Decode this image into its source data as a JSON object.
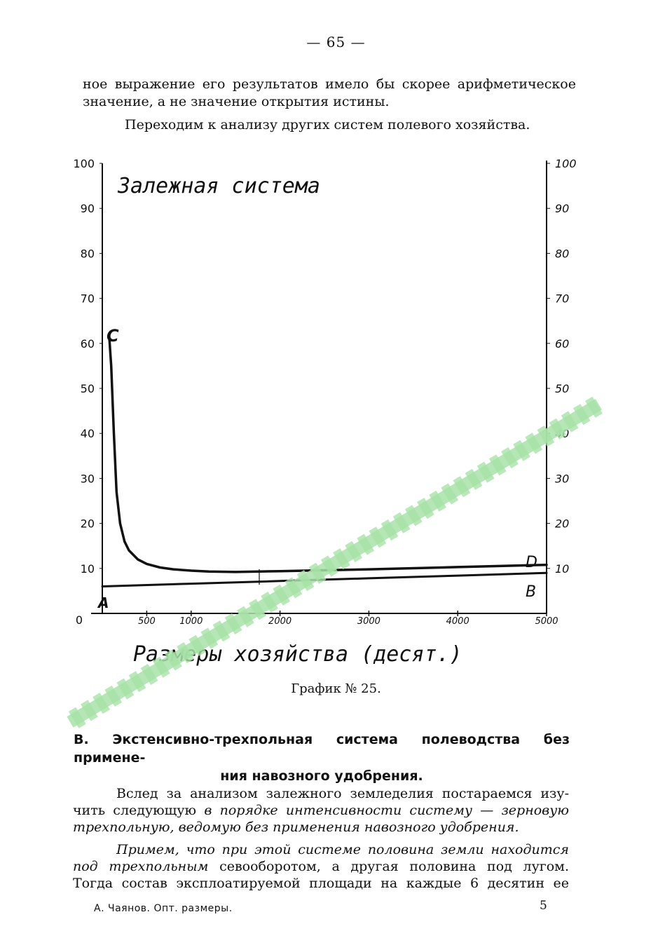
{
  "page_number": "— 65 —",
  "intro": {
    "line1": "ное выражение его результатов имело бы скорее арифметическое",
    "line2": "значение, а не значение открытия истины.",
    "line3": "Переходим к анализу других систем полевого хозяйства."
  },
  "chart_data": {
    "type": "line",
    "title": "Залежная система",
    "xlabel": "Размеры хозяйства (десят.)",
    "ylabel": "",
    "xlim": [
      0,
      5000
    ],
    "ylim": [
      0,
      100
    ],
    "x_ticks": [
      "500",
      "1000",
      "2000",
      "3000",
      "4000",
      "5000"
    ],
    "x_tick_values": [
      500,
      1000,
      2000,
      3000,
      4000,
      5000
    ],
    "y_ticks_left": [
      "0",
      "10",
      "20",
      "30",
      "40",
      "50",
      "60",
      "70",
      "80",
      "90",
      "100"
    ],
    "y_ticks_right": [
      "10",
      "20",
      "30",
      "40",
      "50",
      "60",
      "70",
      "80",
      "90",
      "100"
    ],
    "series": [
      {
        "name": "CD",
        "x": [
          80,
          100,
          130,
          160,
          200,
          250,
          300,
          400,
          500,
          650,
          800,
          1000,
          1200,
          1500,
          2000,
          3000,
          4000,
          5000
        ],
        "y": [
          61,
          55,
          40,
          27,
          20,
          16,
          14,
          12,
          11,
          10.2,
          9.8,
          9.5,
          9.3,
          9.2,
          9.4,
          9.8,
          10.3,
          10.8
        ]
      },
      {
        "name": "AB",
        "x": [
          0,
          1000,
          2000,
          3000,
          4000,
          5000
        ],
        "y": [
          6,
          6.6,
          7.2,
          7.8,
          8.4,
          9
        ]
      }
    ],
    "point_labels": [
      "C",
      "D",
      "A",
      "B"
    ]
  },
  "caption": "График № 25.",
  "section_heading": {
    "line1": "В. Экстенсивно-трехпольная система полеводства без примене-",
    "line2": "ния навозного удобрения."
  },
  "para1": {
    "l1": "Вслед за анализом залежного земледелия постараемся изу-",
    "l2_a": "чить следующую",
    "l2_b": "в порядке интенсивности систему — зерновую",
    "l3": "трехпольную, ведомую без применения навозного удобрения."
  },
  "para2": {
    "l1": "Примем, что при этой системе половина земли находится",
    "l2_a": "под трехпольным",
    "l2_b": "севооборотом, а другая половина под лугом.",
    "l3": "Тогда состав эксплоатируемой площади на каждые 6 десятин ее"
  },
  "footer": {
    "author": "А. Чаянов. Опт. размеры.",
    "signature_number": "5"
  },
  "colors": {
    "ink": "#111111",
    "watermark": "#9fdf9f"
  }
}
